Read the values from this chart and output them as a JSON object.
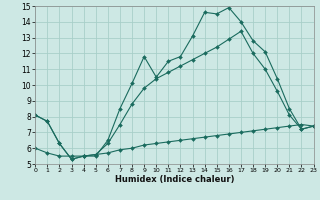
{
  "xlabel": "Humidex (Indice chaleur)",
  "xlim": [
    0,
    23
  ],
  "ylim": [
    5,
    15
  ],
  "xticks": [
    0,
    1,
    2,
    3,
    4,
    5,
    6,
    7,
    8,
    9,
    10,
    11,
    12,
    13,
    14,
    15,
    16,
    17,
    18,
    19,
    20,
    21,
    22,
    23
  ],
  "yticks": [
    5,
    6,
    7,
    8,
    9,
    10,
    11,
    12,
    13,
    14,
    15
  ],
  "bg_color": "#cde8e4",
  "grid_color": "#a8cfc9",
  "line_color": "#1a6b5e",
  "curve1_x": [
    0,
    1,
    2,
    3,
    4,
    5,
    6,
    7,
    8,
    9,
    10,
    11,
    12,
    13,
    14,
    15,
    16,
    17,
    18,
    19,
    20,
    21,
    22,
    23
  ],
  "curve1_y": [
    8.1,
    7.7,
    6.3,
    5.3,
    5.5,
    5.5,
    6.5,
    8.5,
    10.1,
    11.8,
    10.5,
    11.5,
    11.8,
    13.1,
    14.6,
    14.5,
    14.9,
    14.0,
    12.8,
    12.1,
    10.4,
    8.5,
    7.2,
    7.4
  ],
  "curve2_x": [
    0,
    1,
    2,
    3,
    4,
    5,
    6,
    7,
    8,
    9,
    10,
    11,
    12,
    13,
    14,
    15,
    16,
    17,
    18,
    19,
    20,
    21,
    22,
    23
  ],
  "curve2_y": [
    8.1,
    7.7,
    6.3,
    5.3,
    5.5,
    5.6,
    6.3,
    7.5,
    8.8,
    9.8,
    10.4,
    10.8,
    11.2,
    11.6,
    12.0,
    12.4,
    12.9,
    13.4,
    12.0,
    11.0,
    9.6,
    8.1,
    7.2,
    7.4
  ],
  "curve3_x": [
    0,
    1,
    2,
    3,
    4,
    5,
    6,
    7,
    8,
    9,
    10,
    11,
    12,
    13,
    14,
    15,
    16,
    17,
    18,
    19,
    20,
    21,
    22,
    23
  ],
  "curve3_y": [
    6.0,
    5.7,
    5.5,
    5.5,
    5.5,
    5.6,
    5.7,
    5.9,
    6.0,
    6.2,
    6.3,
    6.4,
    6.5,
    6.6,
    6.7,
    6.8,
    6.9,
    7.0,
    7.1,
    7.2,
    7.3,
    7.4,
    7.5,
    7.4
  ]
}
